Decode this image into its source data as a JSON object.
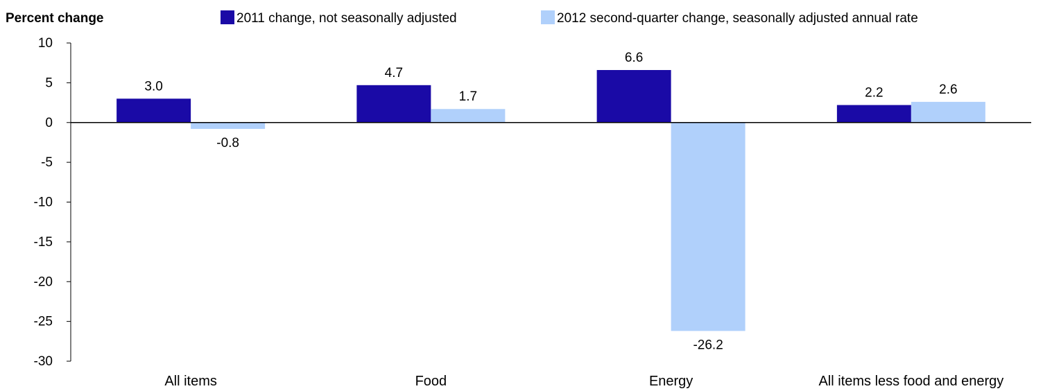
{
  "chart_data": {
    "type": "bar",
    "ylabel": "Percent change",
    "categories": [
      "All items",
      "Food",
      "Energy",
      "All items less food and energy"
    ],
    "series": [
      {
        "name": "2011 change, not seasonally adjusted",
        "values": [
          3.0,
          4.7,
          6.6,
          2.2
        ],
        "color": "#1a0aa6"
      },
      {
        "name": "2012 second-quarter change, seasonally adjusted annual rate",
        "values": [
          -0.8,
          1.7,
          -26.2,
          2.6
        ],
        "color": "#b0d0fb"
      }
    ],
    "data_labels": [
      [
        "3.0",
        "4.7",
        "6.6",
        "2.2"
      ],
      [
        "-0.8",
        "1.7",
        "-26.2",
        "2.6"
      ]
    ],
    "ylim": [
      -30,
      10
    ],
    "yticks": [
      10,
      5,
      0,
      -5,
      -10,
      -15,
      -20,
      -25,
      -30
    ],
    "grid": false,
    "legend_position": "top"
  }
}
